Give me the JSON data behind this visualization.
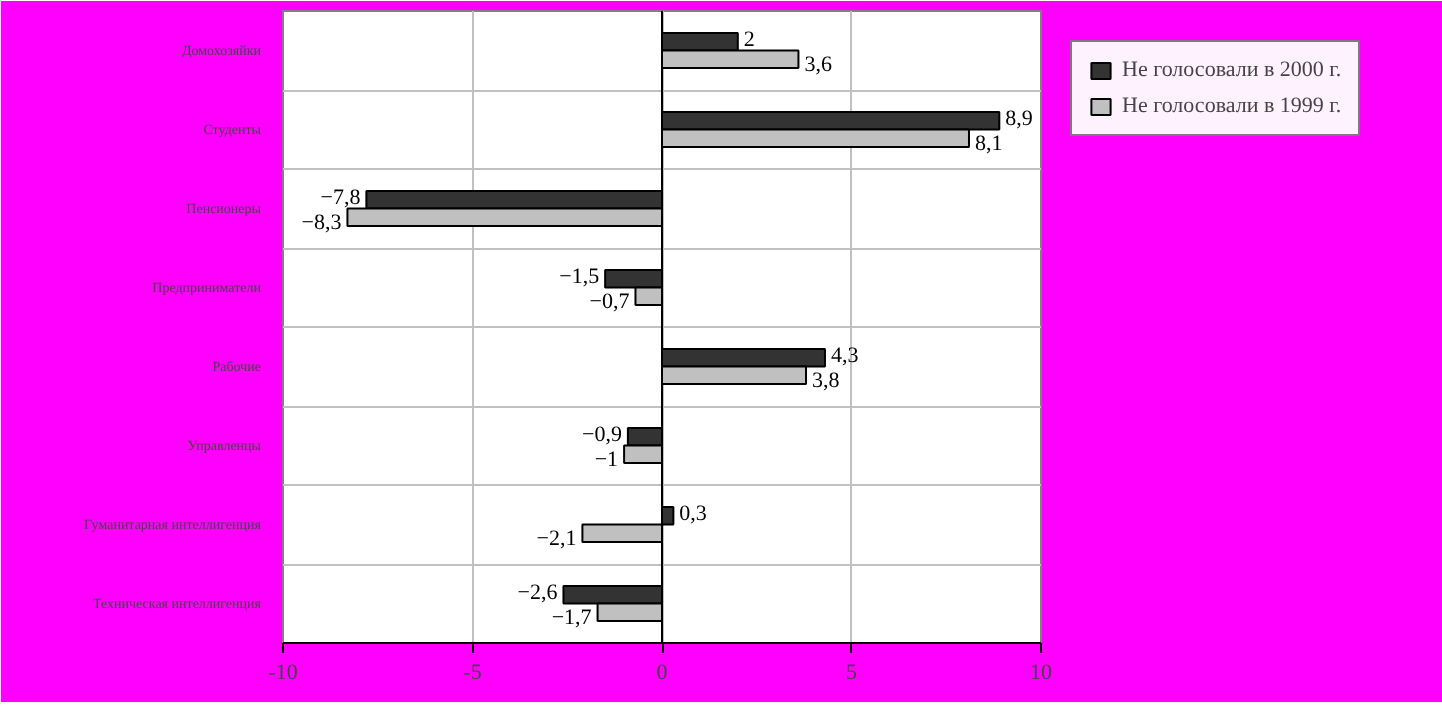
{
  "chart_data": {
    "type": "bar",
    "orientation": "horizontal",
    "categories": [
      "Домохозяйки",
      "Студенты",
      "Пенсионеры",
      "Предприниматели",
      "Рабочие",
      "Управленцы",
      "Гуманитарная интеллигенция",
      "Техническая интеллигенция"
    ],
    "series": [
      {
        "name": "Не голосовали в 2000 г.",
        "color": "#333333",
        "values": [
          2,
          8.9,
          -7.8,
          -1.5,
          4.3,
          -0.9,
          0.3,
          -2.6
        ],
        "value_labels": [
          "2",
          "8,9",
          "−7,8",
          "−1,5",
          "4,3",
          "−0,9",
          "0,3",
          "−2,6"
        ]
      },
      {
        "name": "Не голосовали в 1999 г.",
        "color": "#c0c0c0",
        "values": [
          3.6,
          8.1,
          -8.3,
          -0.7,
          3.8,
          -1,
          -2.1,
          -1.7
        ],
        "value_labels": [
          "3,6",
          "8,1",
          "−8,3",
          "−0,7",
          "3,8",
          "−1",
          "−2,1",
          "−1,7"
        ]
      }
    ],
    "xlim": [
      -10,
      10
    ],
    "xticks": [
      -10,
      -5,
      0,
      5,
      10
    ],
    "grid": true,
    "legend": "top right"
  }
}
